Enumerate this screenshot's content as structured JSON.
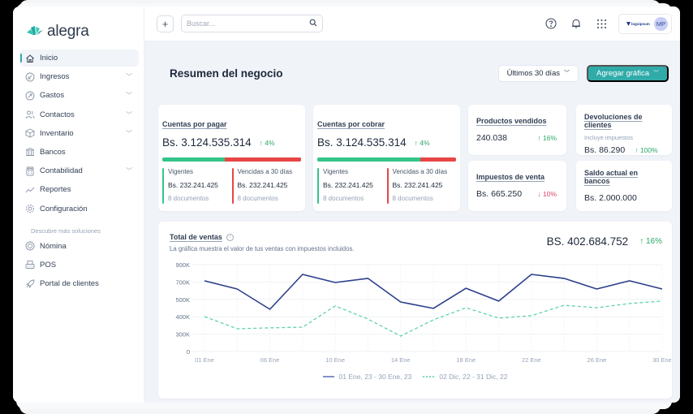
{
  "app": {
    "brand": "alegra",
    "brand_color": "#30aba9"
  },
  "sidebar": {
    "items": [
      {
        "label": "Inicio",
        "icon": "home-icon",
        "active": true,
        "expandable": false
      },
      {
        "label": "Ingresos",
        "icon": "income-icon",
        "expandable": true
      },
      {
        "label": "Gastos",
        "icon": "expense-icon",
        "expandable": true
      },
      {
        "label": "Contactos",
        "icon": "contacts-icon",
        "expandable": true
      },
      {
        "label": "Inventario",
        "icon": "inventory-icon",
        "expandable": true
      },
      {
        "label": "Bancos",
        "icon": "bank-icon",
        "expandable": false
      },
      {
        "label": "Contabilidad",
        "icon": "calculator-icon",
        "expandable": true
      },
      {
        "label": "Reportes",
        "icon": "reports-icon",
        "expandable": false
      },
      {
        "label": "Configuración",
        "icon": "gear-icon",
        "expandable": false
      }
    ],
    "section_title": "Descubre más soluciones",
    "solutions": [
      {
        "label": "Nómina",
        "icon": "payroll-icon"
      },
      {
        "label": "POS",
        "icon": "pos-icon"
      },
      {
        "label": "Portal de clientes",
        "icon": "rocket-icon"
      }
    ]
  },
  "topbar": {
    "add_label": "+",
    "search_placeholder": "Buscar...",
    "company_logo_text": "logoipsum",
    "avatar_initials": "MP"
  },
  "page": {
    "title": "Resumen del negocio",
    "range_label": "Últimos 30 días",
    "add_chart_label": "Agregar gráfica"
  },
  "cards": {
    "payable": {
      "title": "Cuentas por pagar",
      "amount": "Bs. 3.124.535.314",
      "trend": "4%",
      "green_ratio": 45,
      "current_label": "Vigentes",
      "current_amount": "Bs. 232.241.425",
      "current_docs": "8 documentos",
      "overdue_label": "Vencidas a 30 días",
      "overdue_amount": "Bs. 232.241.425",
      "overdue_docs": "8 documentos"
    },
    "receivable": {
      "title": "Cuentas por cobrar",
      "amount": "Bs. 3.124.535.314",
      "trend": "4%",
      "green_ratio": 74,
      "current_label": "Vigentes",
      "current_amount": "Bs. 232.241.425",
      "current_docs": "8 documentos",
      "overdue_label": "Vencidas a 30 días",
      "overdue_amount": "Bs. 232.241.425",
      "overdue_docs": "8 documentos"
    },
    "products_sold": {
      "title": "Productos vendidos",
      "value": "240.038",
      "trend": "16%",
      "direction": "up"
    },
    "returns": {
      "title": "Devoluciones de clientes",
      "subtitle": "Incluye impuestos",
      "value": "Bs. 86.290",
      "trend": "100%",
      "direction": "up"
    },
    "sales_tax": {
      "title": "Impuestos de venta",
      "value": "Bs. 665.250",
      "trend": "10%",
      "direction": "down"
    },
    "bank_balance": {
      "title": "Saldo actual en bancos",
      "value": "Bs. 2.000.000"
    }
  },
  "sales_chart": {
    "title": "Total de ventas",
    "subtitle": "La gráfica muestra el valor de tus ventas con impuestos incluidos.",
    "total": "BS. 402.684.752",
    "trend": "16%",
    "colors": {
      "current": "#2c3e8c",
      "previous": "#5fd3a5"
    }
  },
  "chart_data": {
    "type": "line",
    "title": "Total de ventas",
    "xlabel": "",
    "ylabel": "",
    "y_tick_labels": [
      "0",
      "300K",
      "400K",
      "500K",
      "700K",
      "900K"
    ],
    "x_tick_labels": [
      "01 Ene",
      "06 Ene",
      "10 Ene",
      "14 Ene",
      "18 Ene",
      "22 Ene",
      "26 Ene",
      "30 Ene"
    ],
    "grid": true,
    "legend_position": "bottom",
    "x": [
      0,
      1,
      2,
      3,
      4,
      5,
      6,
      7,
      8,
      9,
      10,
      11,
      12,
      13,
      14
    ],
    "series": [
      {
        "name": "01 Ene, 23 - 30 Ene, 23",
        "style": "solid",
        "values": [
          714000,
          620000,
          443000,
          788000,
          694000,
          742000,
          485000,
          448000,
          628000,
          490000,
          788000,
          742000,
          620000,
          714000,
          620000
        ],
        "tick_positions": [
          4.07,
          3.6,
          2.43,
          4.44,
          3.97,
          4.21,
          2.85,
          2.48,
          3.64,
          2.9,
          4.44,
          4.21,
          3.6,
          4.07,
          3.6
        ]
      },
      {
        "name": "02 Dic, 22 - 31 Dic, 22",
        "style": "dashed",
        "values": [
          401000,
          331000,
          336000,
          340000,
          462000,
          387000,
          267000,
          382000,
          452000,
          392000,
          412000,
          466000,
          452000,
          476000,
          490000
        ],
        "tick_positions": [
          2.01,
          1.31,
          1.36,
          1.4,
          2.62,
          1.87,
          0.89,
          1.82,
          2.52,
          1.92,
          2.06,
          2.66,
          2.52,
          2.76,
          2.9
        ]
      }
    ]
  }
}
